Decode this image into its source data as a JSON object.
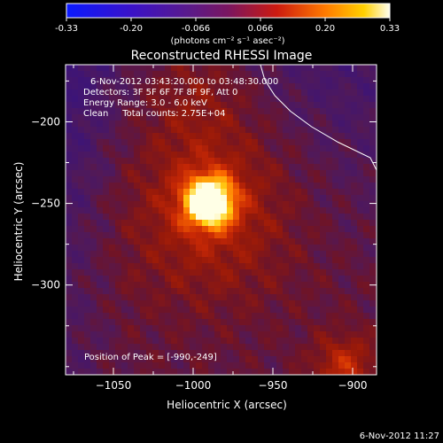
{
  "colorbar": {
    "ticks": [
      "-0.33",
      "-0.20",
      "-0.066",
      "0.066",
      "0.20",
      "0.33"
    ],
    "unit_label": "(photons cm⁻² s⁻¹ asec⁻²)"
  },
  "chart_data": {
    "type": "heatmap",
    "title": "Reconstructed RHESSI Image",
    "xlabel": "Heliocentric X (arcsec)",
    "ylabel": "Heliocentric Y (arcsec)",
    "xlim": [
      -1080,
      -885
    ],
    "ylim": [
      -355,
      -165
    ],
    "x_ticks": [
      -1050,
      -1000,
      -950,
      -900
    ],
    "x_tick_labels": [
      "−1050",
      "−1000",
      "−950",
      "−900"
    ],
    "y_ticks": [
      -200,
      -250,
      -300
    ],
    "y_tick_labels": [
      "−200",
      "−250",
      "−300"
    ],
    "colorscale_range": [
      -0.33,
      0.33
    ],
    "peak": [
      -990,
      -249
    ],
    "annotations": [
      "6-Nov-2012 03:43:20.000 to 03:48:30.000",
      "Detectors: 3F 5F 6F 7F 8F 9F, Att 0",
      "Energy Range: 3.0 - 6.0 keV",
      "Clean     Total counts: 2.75E+04",
      "Position of Peak = [-990,-249]"
    ]
  },
  "footer": {
    "timestamp": "6-Nov-2012 11:27"
  }
}
